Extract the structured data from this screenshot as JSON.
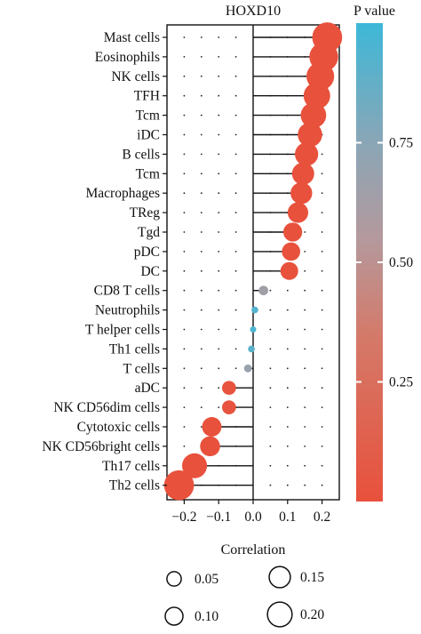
{
  "chart_data": {
    "type": "scatter",
    "title": "HOXD10",
    "xlabel": "Correlation",
    "xlim": [
      -0.25,
      0.25
    ],
    "xticks": [
      -0.2,
      -0.1,
      0.0,
      0.1,
      0.2
    ],
    "xtick_labels": [
      "−0.2",
      "−0.1",
      "0.0",
      "0.1",
      "0.2"
    ],
    "categories": [
      "Mast cells",
      "Eosinophils",
      "NK cells",
      "TFH",
      "Tcm",
      "iDC",
      "B cells",
      "Tcm",
      "Macrophages",
      "TReg",
      "Tgd",
      "pDC",
      "DC",
      "CD8 T cells",
      "Neutrophils",
      "T helper cells",
      "Th1 cells",
      "T cells",
      "aDC",
      "NK CD56dim cells",
      "Cytotoxic cells",
      "NK CD56bright cells",
      "Th17 cells",
      "Th2 cells"
    ],
    "correlation": [
      0.215,
      0.205,
      0.195,
      0.185,
      0.175,
      0.165,
      0.155,
      0.145,
      0.14,
      0.13,
      0.115,
      0.11,
      0.105,
      0.03,
      0.005,
      0.0,
      -0.005,
      -0.015,
      -0.07,
      -0.07,
      -0.12,
      -0.125,
      -0.17,
      -0.215
    ],
    "pvalue": [
      0.001,
      0.001,
      0.001,
      0.001,
      0.001,
      0.001,
      0.001,
      0.001,
      0.001,
      0.001,
      0.002,
      0.002,
      0.003,
      0.55,
      0.9,
      0.93,
      0.88,
      0.6,
      0.01,
      0.01,
      0.002,
      0.002,
      0.001,
      0.001
    ],
    "colorbar": {
      "title": "P value",
      "ticks": [
        0.25,
        0.5,
        0.75
      ],
      "tick_labels": [
        "0.25",
        "0.50",
        "0.75"
      ],
      "range": [
        0,
        1
      ],
      "colors": [
        "#e8513c",
        "#c9938e",
        "#8aa6b6",
        "#3db8d8"
      ]
    },
    "size_legend": {
      "values": [
        0.05,
        0.1,
        0.15,
        0.2
      ],
      "labels": [
        "0.05",
        "0.10",
        "0.15",
        "0.20"
      ]
    },
    "grid": "dotted",
    "legend_position": "right"
  }
}
